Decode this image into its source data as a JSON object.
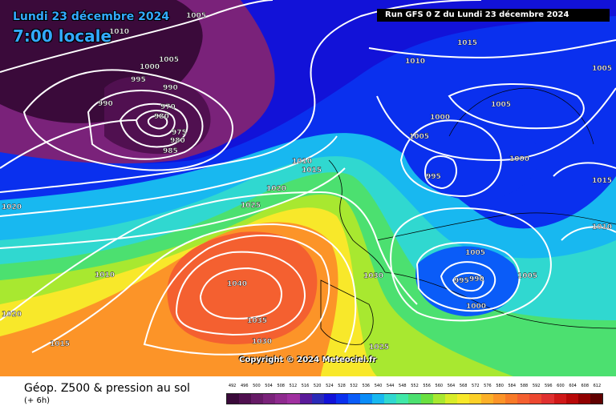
{
  "header": {
    "date_title": "Lundi 23 décembre 2024",
    "time_title": "7:00 locale",
    "run_info": "Run GFS 0 Z du Lundi 23 décembre 2024"
  },
  "copyright": "Copyright © 2024 Meteociel.fr",
  "footer": {
    "title": "Géop. Z500 & pression au sol",
    "subtitle": "(+ 6h)"
  },
  "legend": {
    "labels": [
      "492",
      "496",
      "500",
      "504",
      "508",
      "512",
      "516",
      "520",
      "524",
      "528",
      "532",
      "536",
      "540",
      "544",
      "548",
      "552",
      "556",
      "560",
      "564",
      "568",
      "572",
      "576",
      "580",
      "584",
      "588",
      "592",
      "596",
      "600",
      "604",
      "608",
      "612"
    ],
    "colors": [
      "#3a0a3a",
      "#501050",
      "#661a66",
      "#7a227a",
      "#8e2a8e",
      "#a030a0",
      "#5a1a9a",
      "#2a2ab8",
      "#1212d8",
      "#0a30ee",
      "#0a5cf8",
      "#0a8cf8",
      "#18b8f0",
      "#30d8d0",
      "#40e8a8",
      "#4ce070",
      "#6ae040",
      "#a8e830",
      "#d8ec28",
      "#f8e82a",
      "#fcd028",
      "#fcb028",
      "#fc9428",
      "#f87a28",
      "#f46030",
      "#ec4830",
      "#e03030",
      "#d01818",
      "#b80808",
      "#900000",
      "#600000"
    ]
  },
  "map_colors": {
    "deep_purple": "#3a0a3a",
    "violet": "#7a227a",
    "blue": "#0a30ee",
    "cyan": "#18b8f0",
    "green": "#4ce070",
    "yellow": "#f8e82a",
    "orange": "#fc9428",
    "red": "#f46030"
  },
  "pressure_labels": [
    {
      "text": "1005"
    },
    {
      "text": "1010"
    },
    {
      "text": "1005"
    },
    {
      "text": "995"
    },
    {
      "text": "1000"
    },
    {
      "text": "990"
    },
    {
      "text": "990"
    },
    {
      "text": "970"
    },
    {
      "text": "980"
    },
    {
      "text": "975"
    },
    {
      "text": "980"
    },
    {
      "text": "985"
    },
    {
      "text": "1015"
    },
    {
      "text": "1010"
    },
    {
      "text": "1005"
    },
    {
      "text": "1005"
    },
    {
      "text": "1000"
    },
    {
      "text": "1005"
    },
    {
      "text": "1000"
    },
    {
      "text": "995"
    },
    {
      "text": "1015"
    },
    {
      "text": "1010"
    },
    {
      "text": "1010"
    },
    {
      "text": "1015"
    },
    {
      "text": "1020"
    },
    {
      "text": "1025"
    },
    {
      "text": "1020"
    },
    {
      "text": "1010"
    },
    {
      "text": "1040"
    },
    {
      "text": "1035"
    },
    {
      "text": "1030"
    },
    {
      "text": "1030"
    },
    {
      "text": "1025"
    },
    {
      "text": "1020"
    },
    {
      "text": "1015"
    },
    {
      "text": "1005"
    },
    {
      "text": "995"
    },
    {
      "text": "990"
    },
    {
      "text": "1000"
    },
    {
      "text": "1005"
    }
  ]
}
